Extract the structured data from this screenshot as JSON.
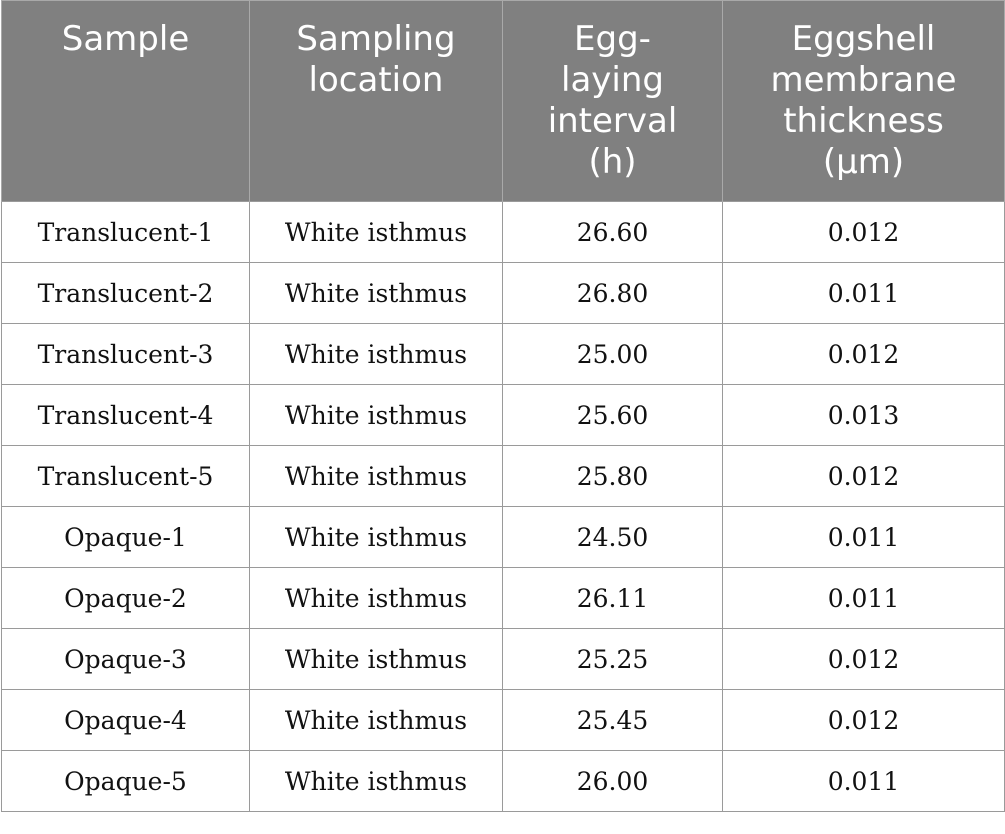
{
  "table": {
    "headers": [
      {
        "lines": [
          "Sample"
        ]
      },
      {
        "lines": [
          "Sampling",
          "location"
        ]
      },
      {
        "lines": [
          "Egg-",
          "laying",
          "interval",
          "(h)"
        ]
      },
      {
        "lines": [
          "Eggshell",
          "membrane",
          "thickness",
          "(μm)"
        ]
      }
    ],
    "rows": [
      {
        "sample": "Translucent-1",
        "location": "White isthmus",
        "interval": "26.60",
        "thickness": "0.012"
      },
      {
        "sample": "Translucent-2",
        "location": "White isthmus",
        "interval": "26.80",
        "thickness": "0.011"
      },
      {
        "sample": "Translucent-3",
        "location": "White isthmus",
        "interval": "25.00",
        "thickness": "0.012"
      },
      {
        "sample": "Translucent-4",
        "location": "White isthmus",
        "interval": "25.60",
        "thickness": "0.013"
      },
      {
        "sample": "Translucent-5",
        "location": "White isthmus",
        "interval": "25.80",
        "thickness": "0.012"
      },
      {
        "sample": "Opaque-1",
        "location": "White isthmus",
        "interval": "24.50",
        "thickness": "0.011"
      },
      {
        "sample": "Opaque-2",
        "location": "White isthmus",
        "interval": "26.11",
        "thickness": "0.011"
      },
      {
        "sample": "Opaque-3",
        "location": "White isthmus",
        "interval": "25.25",
        "thickness": "0.012"
      },
      {
        "sample": "Opaque-4",
        "location": "White isthmus",
        "interval": "25.45",
        "thickness": "0.012"
      },
      {
        "sample": "Opaque-5",
        "location": "White isthmus",
        "interval": "26.00",
        "thickness": "0.011"
      }
    ]
  },
  "colors": {
    "header_background": "#808080",
    "header_text": "#ffffff",
    "border": "#9a9a9a",
    "body_text": "#111111"
  }
}
